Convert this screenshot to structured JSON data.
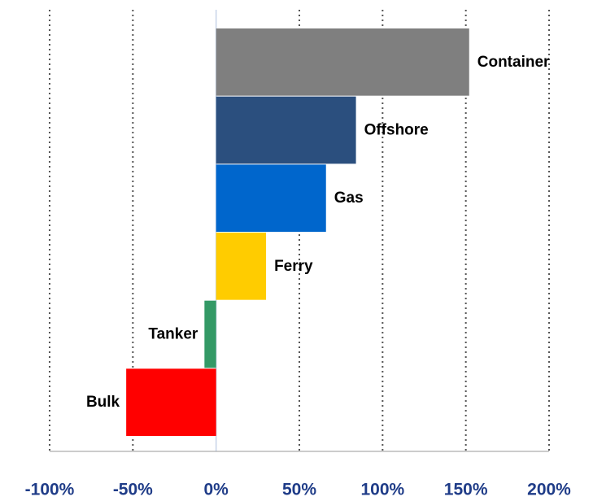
{
  "chart_data": {
    "type": "barh",
    "categories": [
      "Container",
      "Offshore",
      "Gas",
      "Ferry",
      "Tanker",
      "Bulk"
    ],
    "values": [
      152,
      84,
      66,
      30,
      -7,
      -54
    ],
    "colors": [
      "#7f7f7f",
      "#2b4f7e",
      "#0066cc",
      "#ffcc00",
      "#339966",
      "#ff0000"
    ],
    "xlim": [
      -100,
      200
    ],
    "xticks": [
      {
        "value": -100,
        "label": "-100%"
      },
      {
        "value": -50,
        "label": "-50%"
      },
      {
        "value": 0,
        "label": "0%"
      },
      {
        "value": 50,
        "label": "50%"
      },
      {
        "value": 100,
        "label": "100%"
      },
      {
        "value": 150,
        "label": "150%"
      },
      {
        "value": 200,
        "label": "200%"
      }
    ],
    "grid": true
  }
}
